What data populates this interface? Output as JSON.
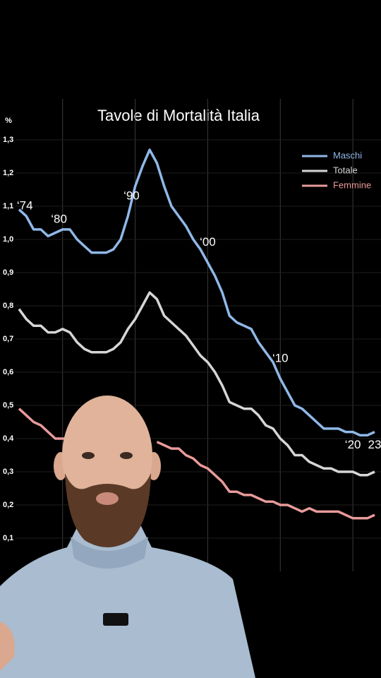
{
  "chart_data": {
    "type": "line",
    "title": "Tavole di Mortalità Italia",
    "y_label": "%",
    "x": [
      1974,
      1975,
      1976,
      1977,
      1978,
      1979,
      1980,
      1981,
      1982,
      1983,
      1984,
      1985,
      1986,
      1987,
      1988,
      1989,
      1990,
      1991,
      1992,
      1993,
      1994,
      1995,
      1996,
      1997,
      1998,
      1999,
      2000,
      2001,
      2002,
      2003,
      2004,
      2005,
      2006,
      2007,
      2008,
      2009,
      2010,
      2011,
      2012,
      2013,
      2014,
      2015,
      2016,
      2017,
      2018,
      2019,
      2020,
      2021,
      2022,
      2023
    ],
    "series": [
      {
        "name": "Maschi",
        "color": "#8fb8e8",
        "values": [
          1.09,
          1.07,
          1.03,
          1.03,
          1.01,
          1.02,
          1.03,
          1.03,
          1.0,
          0.98,
          0.96,
          0.96,
          0.96,
          0.97,
          1.0,
          1.07,
          1.16,
          1.22,
          1.27,
          1.23,
          1.16,
          1.1,
          1.07,
          1.04,
          1.0,
          0.97,
          0.93,
          0.89,
          0.84,
          0.77,
          0.75,
          0.74,
          0.73,
          0.69,
          0.66,
          0.63,
          0.58,
          0.54,
          0.5,
          0.49,
          0.47,
          0.45,
          0.43,
          0.43,
          0.43,
          0.42,
          0.42,
          0.41,
          0.41,
          0.42
        ]
      },
      {
        "name": "Totale",
        "color": "#d6d6d6",
        "values": [
          0.79,
          0.76,
          0.74,
          0.74,
          0.72,
          0.72,
          0.73,
          0.72,
          0.69,
          0.67,
          0.66,
          0.66,
          0.66,
          0.67,
          0.69,
          0.73,
          0.76,
          0.8,
          0.84,
          0.82,
          0.77,
          0.75,
          0.73,
          0.71,
          0.68,
          0.65,
          0.63,
          0.6,
          0.56,
          0.51,
          0.5,
          0.49,
          0.49,
          0.47,
          0.44,
          0.43,
          0.4,
          0.38,
          0.35,
          0.35,
          0.33,
          0.32,
          0.31,
          0.31,
          0.3,
          0.3,
          0.3,
          0.29,
          0.29,
          0.3
        ]
      },
      {
        "name": "Femmine",
        "color": "#e89a9a",
        "values": [
          0.49,
          0.47,
          0.45,
          0.44,
          0.42,
          0.4,
          0.4,
          0.4,
          null,
          null,
          null,
          null,
          null,
          null,
          null,
          null,
          null,
          null,
          null,
          0.39,
          0.38,
          0.37,
          0.37,
          0.35,
          0.34,
          0.32,
          0.31,
          0.29,
          0.27,
          0.24,
          0.24,
          0.23,
          0.23,
          0.22,
          0.21,
          0.21,
          0.2,
          0.2,
          0.19,
          0.18,
          0.19,
          0.18,
          0.18,
          0.18,
          0.18,
          0.17,
          0.16,
          0.16,
          0.16,
          0.17
        ]
      }
    ],
    "xlim": [
      1974,
      2023
    ],
    "xticks": [
      1980,
      1990,
      2000,
      2010,
      2020
    ],
    "ylim": [
      0,
      1.3
    ],
    "yticks": [
      {
        "value": 0.1,
        "label": "0,1"
      },
      {
        "value": 0.2,
        "label": "0,2"
      },
      {
        "value": 0.3,
        "label": "0,3"
      },
      {
        "value": 0.4,
        "label": "0,4"
      },
      {
        "value": 0.5,
        "label": "0,5"
      },
      {
        "value": 0.6,
        "label": "0,6"
      },
      {
        "value": 0.7,
        "label": "0,7"
      },
      {
        "value": 0.8,
        "label": "0,8"
      },
      {
        "value": 0.9,
        "label": "0,9"
      },
      {
        "value": 1.0,
        "label": "1,0"
      },
      {
        "value": 1.1,
        "label": "1,1"
      },
      {
        "value": 1.2,
        "label": "1,2"
      },
      {
        "value": 1.3,
        "label": "1,3"
      }
    ],
    "annotations": [
      {
        "text": "‘74",
        "x": 1974.8,
        "y": 1.1
      },
      {
        "text": "‘80",
        "x": 1979.5,
        "y": 1.06
      },
      {
        "text": "‘90",
        "x": 1989.5,
        "y": 1.13
      },
      {
        "text": "‘00",
        "x": 2000,
        "y": 0.99
      },
      {
        "text": "‘10",
        "x": 2010,
        "y": 0.64
      },
      {
        "text": "‘20",
        "x": 2020,
        "y": 0.38
      },
      {
        "text": "23",
        "x": 2023,
        "y": 0.38
      }
    ],
    "grid": true,
    "legend": "upper right"
  }
}
